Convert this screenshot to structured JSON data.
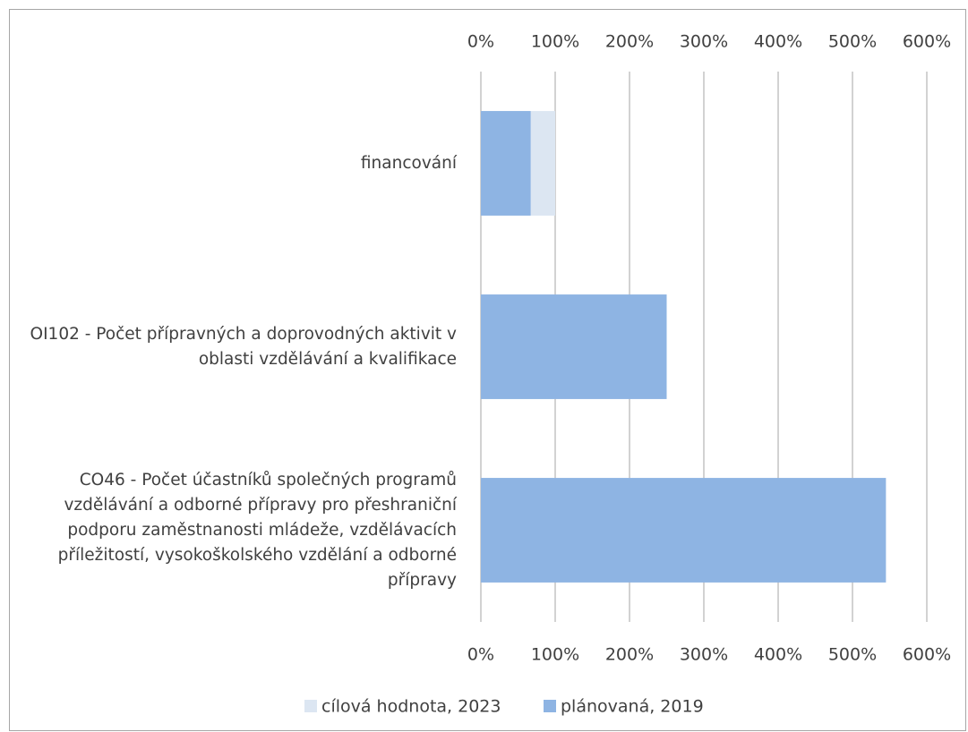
{
  "chart_data": {
    "type": "bar",
    "categories": [
      "financování",
      "OI102 - Počet přípravných a doprovodných aktivit v oblasti vzdělávání a kvalifikace",
      "CO46 - Počet účastníků společných programů vzdělávání a odborné přípravy pro přeshraniční podporu zaměstnanosti mládeže, vzdělávacích příležitostí, vysokoškolského vzdělání a odborné přípravy"
    ],
    "series": [
      {
        "name": "cílová hodnota, 2023",
        "color": "#dce6f2",
        "values": [
          100,
          100,
          100
        ]
      },
      {
        "name": "plánovaná, 2019",
        "color": "#8eb4e3",
        "values": [
          67,
          250,
          545
        ]
      }
    ],
    "xlim": [
      0,
      600
    ],
    "xticks": [
      {
        "value": 0,
        "label": "0%"
      },
      {
        "value": 100,
        "label": "100%"
      },
      {
        "value": 200,
        "label": "200%"
      },
      {
        "value": 300,
        "label": "300%"
      },
      {
        "value": 400,
        "label": "400%"
      },
      {
        "value": 500,
        "label": "500%"
      },
      {
        "value": 600,
        "label": "600%"
      }
    ],
    "grid": true,
    "legend": "bottom"
  }
}
